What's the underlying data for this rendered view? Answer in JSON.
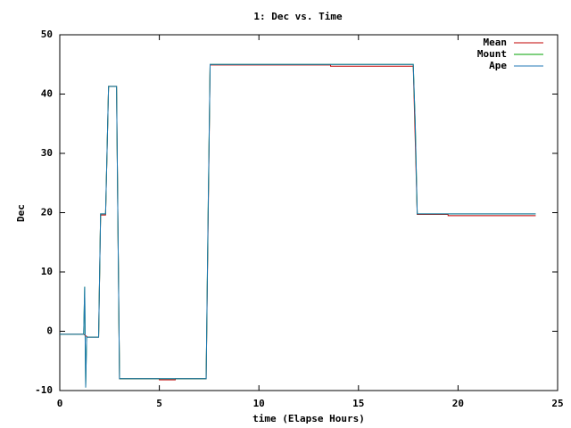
{
  "chart_data": {
    "type": "line",
    "title": "1: Dec vs. Time",
    "xlabel": "time (Elapse Hours)",
    "ylabel": "Dec",
    "xlim": [
      0,
      25
    ],
    "xticks": [
      0,
      5,
      10,
      15,
      20,
      25
    ],
    "ylim": [
      -10,
      50
    ],
    "yticks": [
      -10,
      0,
      10,
      20,
      30,
      40,
      50
    ],
    "legend": "upper right",
    "series": [
      {
        "name": "Mean",
        "color": "#c00000",
        "x": [
          0,
          1.2,
          1.4,
          1.95,
          2.05,
          2.3,
          2.45,
          2.85,
          3.0,
          5.0,
          5.0,
          5.8,
          5.8,
          7.35,
          7.55,
          13.6,
          13.6,
          17.75,
          17.95,
          19.5,
          19.5,
          23.9
        ],
        "values": [
          -0.5,
          -0.5,
          -1,
          -1,
          19.6,
          19.6,
          41.3,
          41.3,
          -8,
          -8,
          -8.2,
          -8.2,
          -8,
          -8,
          44.9,
          44.9,
          44.7,
          44.7,
          19.7,
          19.7,
          19.5,
          19.5
        ]
      },
      {
        "name": "Mount",
        "color": "#00a000",
        "x": [
          0,
          1.2,
          1.25,
          1.3,
          1.35,
          1.4,
          1.95,
          2.05,
          2.3,
          2.45,
          2.85,
          3.0,
          7.35,
          7.45,
          7.55,
          17.75,
          17.85,
          17.95,
          23.9
        ],
        "values": [
          -0.5,
          -0.5,
          7.5,
          -9.5,
          -1,
          -1,
          -1,
          19.8,
          19.8,
          41.3,
          41.3,
          -8,
          -8,
          20,
          45,
          45,
          35,
          19.8,
          19.8
        ]
      },
      {
        "name": "Ape",
        "color": "#1f77b4",
        "x": [
          0,
          1.2,
          1.25,
          1.3,
          1.35,
          1.4,
          1.95,
          2.05,
          2.3,
          2.45,
          2.85,
          3.0,
          7.35,
          7.45,
          7.55,
          17.75,
          17.85,
          17.95,
          23.9
        ],
        "values": [
          -0.5,
          -0.5,
          7.5,
          -9.5,
          -1,
          -1,
          -1,
          19.8,
          19.8,
          41.3,
          41.3,
          -8,
          -8,
          20,
          45,
          45,
          35,
          19.8,
          19.8
        ]
      }
    ]
  }
}
